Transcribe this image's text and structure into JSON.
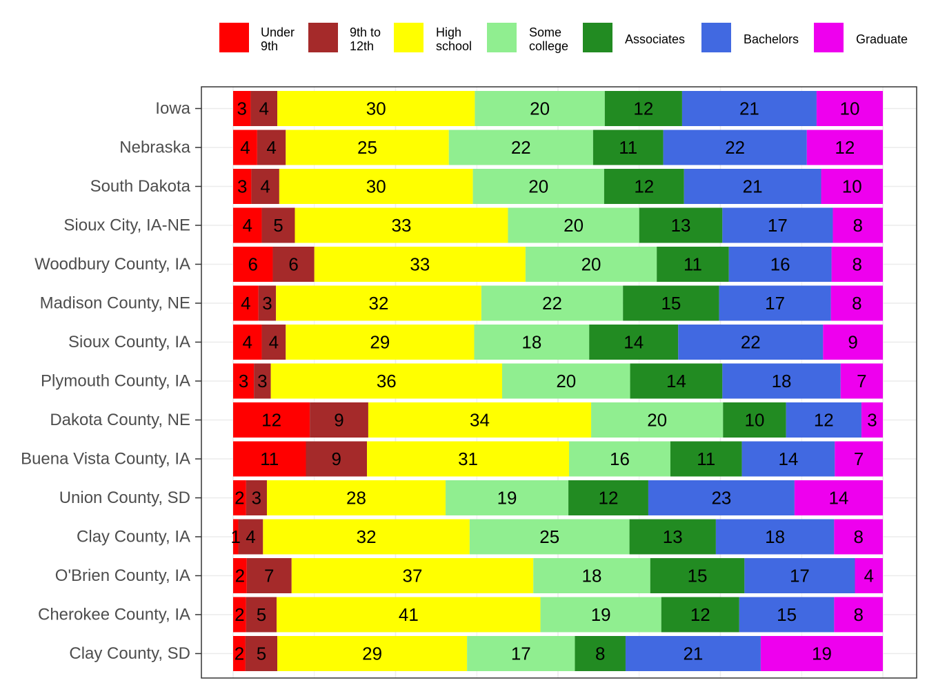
{
  "chart_data": {
    "type": "bar",
    "orientation": "horizontal",
    "stacked": true,
    "title": "",
    "xlabel": "",
    "ylabel": "",
    "xlim": [
      0,
      100
    ],
    "grid": true,
    "legend_position": "top",
    "categories": [
      "Iowa",
      "Nebraska",
      "South Dakota",
      "Sioux City, IA-NE",
      "Woodbury County, IA",
      "Madison County, NE",
      "Sioux County, IA",
      "Plymouth County, IA",
      "Dakota County, NE",
      "Buena Vista County, IA",
      "Union County, SD",
      "Clay County, IA",
      "O'Brien County, IA",
      "Cherokee County, IA",
      "Clay County, SD"
    ],
    "series": [
      {
        "name": "Under 9th",
        "legend_lines": [
          "Under",
          "9th"
        ],
        "color": "#ff0000",
        "values": [
          2.7,
          3.7,
          2.8,
          4.4,
          6.1,
          3.9,
          4.4,
          3.2,
          11.8,
          11.2,
          2.0,
          0.8,
          2.1,
          2.0,
          1.9
        ]
      },
      {
        "name": "9th to 12th",
        "legend_lines": [
          "9th to",
          "12th"
        ],
        "color": "#a52a2a",
        "values": [
          4.1,
          4.4,
          4.3,
          5.1,
          6.4,
          2.7,
          3.7,
          2.6,
          9.0,
          9.4,
          3.2,
          3.8,
          6.9,
          4.7,
          4.9
        ]
      },
      {
        "name": "High school",
        "legend_lines": [
          "High",
          "school"
        ],
        "color": "#ffff00",
        "values": [
          30.4,
          25.1,
          29.8,
          32.8,
          32.5,
          31.6,
          29.0,
          35.6,
          34.3,
          31.1,
          27.5,
          31.8,
          37.2,
          40.6,
          29.2
        ]
      },
      {
        "name": "Some college",
        "legend_lines": [
          "Some",
          "college"
        ],
        "color": "#90ee90",
        "values": [
          20.0,
          22.2,
          20.2,
          20.2,
          20.2,
          21.8,
          17.7,
          19.7,
          20.3,
          15.6,
          18.9,
          24.6,
          18.0,
          18.6,
          16.6
        ]
      },
      {
        "name": "Associates",
        "legend_lines": [
          "Associates"
        ],
        "color": "#228b22",
        "values": [
          11.9,
          10.8,
          12.3,
          12.8,
          11.1,
          14.8,
          13.7,
          14.2,
          9.7,
          11.0,
          12.3,
          13.3,
          14.5,
          12.0,
          7.8
        ]
      },
      {
        "name": "Bachelors",
        "legend_lines": [
          "Bachelors"
        ],
        "color": "#4169e1",
        "values": [
          20.7,
          22.1,
          21.1,
          17.0,
          15.8,
          17.2,
          22.3,
          18.2,
          11.6,
          14.3,
          22.5,
          18.2,
          17.0,
          14.6,
          20.8
        ]
      },
      {
        "name": "Graduate",
        "legend_lines": [
          "Graduate"
        ],
        "color": "#ee00ee",
        "values": [
          10.2,
          11.7,
          9.5,
          7.7,
          7.9,
          8.0,
          9.2,
          6.5,
          3.3,
          7.4,
          13.6,
          7.5,
          4.3,
          7.5,
          18.8
        ]
      }
    ]
  }
}
